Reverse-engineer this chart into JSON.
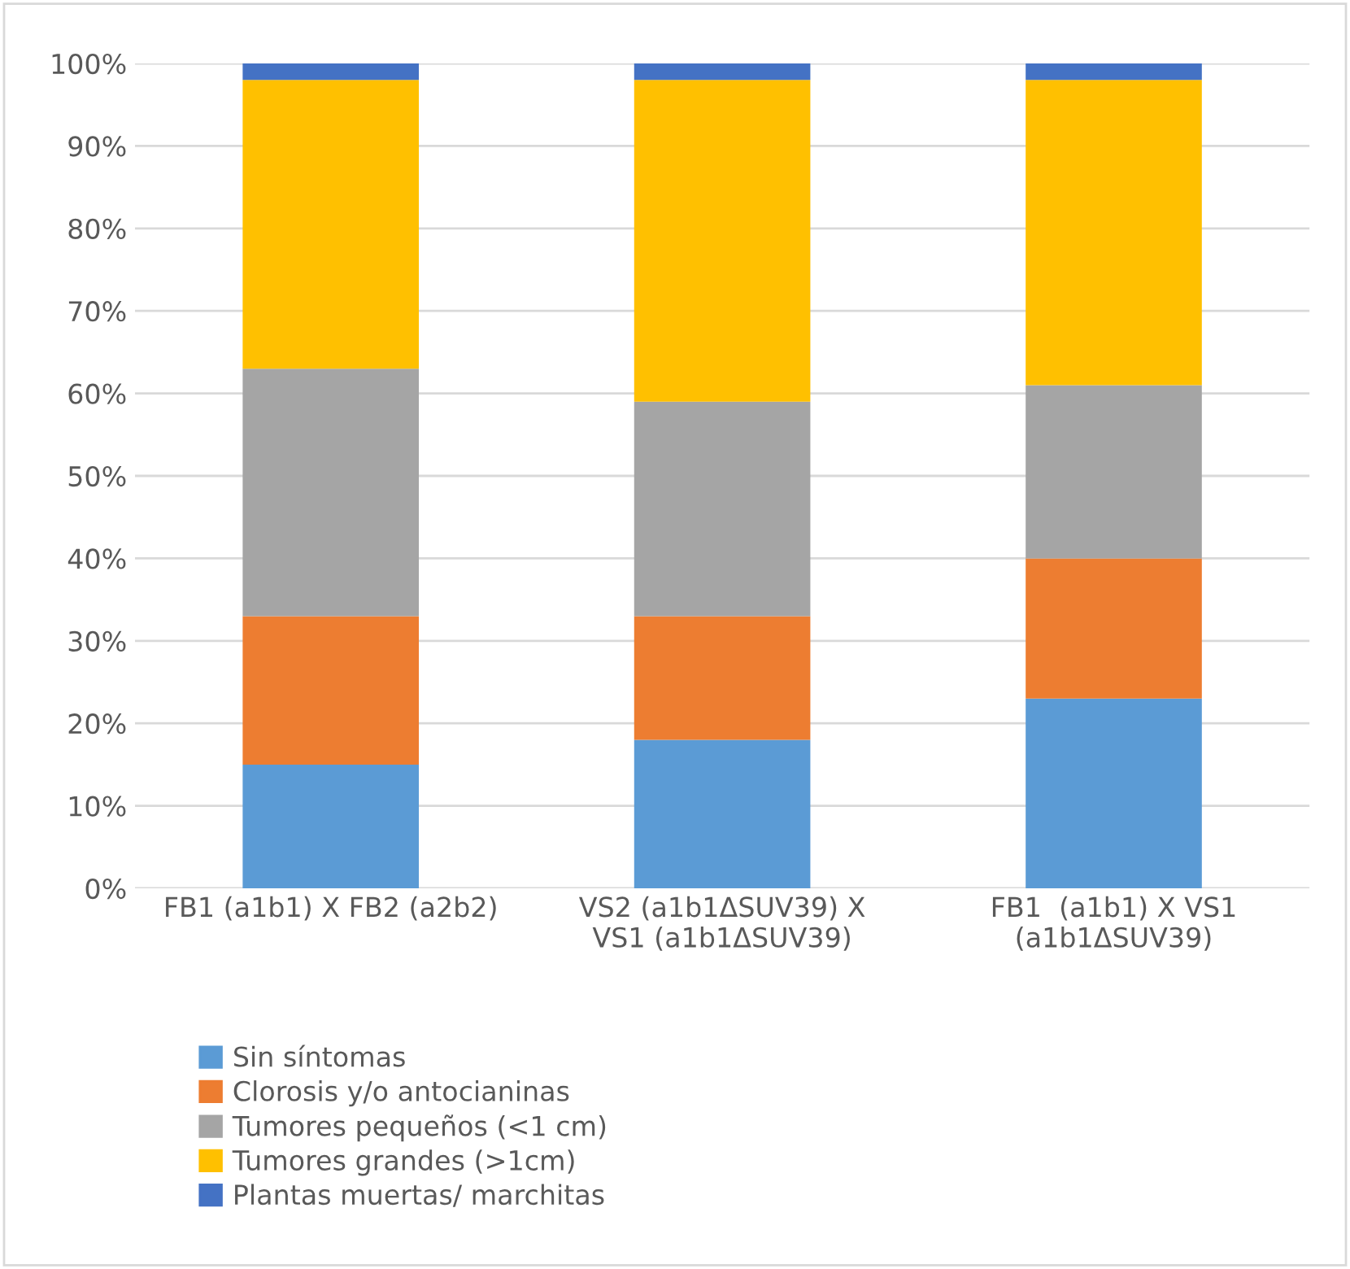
{
  "chart_data": {
    "type": "bar",
    "stacked": true,
    "categories": [
      "FB1 (a1b1) X FB2 (a2b2)",
      "VS2 (a1b1ΔSUV39) X\nVS1 (a1b1ΔSUV39)",
      "FB1  (a1b1) X VS1\n(a1b1ΔSUV39)"
    ],
    "series": [
      {
        "name": "Sin síntomas",
        "color": "#5b9bd5",
        "values": [
          15,
          18,
          23
        ]
      },
      {
        "name": "Clorosis y/o antocianinas",
        "color": "#ed7d31",
        "values": [
          18,
          15,
          17
        ]
      },
      {
        "name": "Tumores pequeños (<1 cm)",
        "color": "#a5a5a5",
        "values": [
          30,
          26,
          21
        ]
      },
      {
        "name": "Tumores grandes (>1cm)",
        "color": "#ffc000",
        "values": [
          35,
          39,
          37
        ]
      },
      {
        "name": "Plantas muertas/ marchitas",
        "color": "#4472c4",
        "values": [
          2,
          2,
          2
        ]
      }
    ],
    "ylim": [
      0,
      100
    ],
    "yticks": [
      {
        "value": 0,
        "label": "0%"
      },
      {
        "value": 10,
        "label": "10%"
      },
      {
        "value": 20,
        "label": "20%"
      },
      {
        "value": 30,
        "label": "30%"
      },
      {
        "value": 40,
        "label": "40%"
      },
      {
        "value": 50,
        "label": "50%"
      },
      {
        "value": 60,
        "label": "60%"
      },
      {
        "value": 70,
        "label": "70%"
      },
      {
        "value": 80,
        "label": "80%"
      },
      {
        "value": 90,
        "label": "90%"
      },
      {
        "value": 100,
        "label": "100%"
      }
    ],
    "grid": "y",
    "legend": "bottom"
  }
}
